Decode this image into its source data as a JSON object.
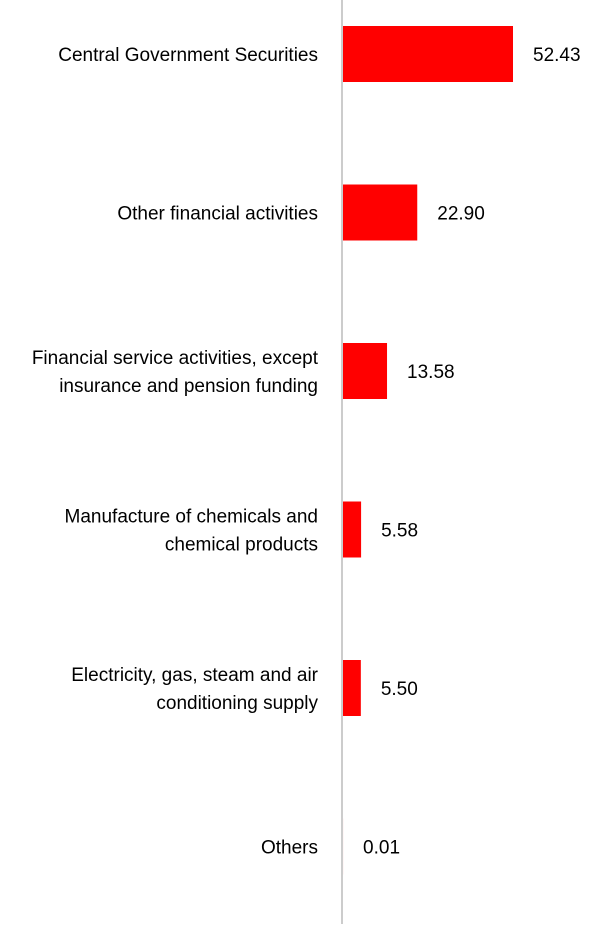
{
  "chart_data": {
    "type": "bar",
    "orientation": "horizontal",
    "categories": [
      [
        "Central Government Securities"
      ],
      [
        "Other financial activities"
      ],
      [
        "Financial service activities, except",
        "insurance and pension funding"
      ],
      [
        "Manufacture of chemicals and",
        "chemical products"
      ],
      [
        "Electricity, gas, steam and air",
        "conditioning supply"
      ],
      [
        "Others"
      ]
    ],
    "values": [
      52.43,
      22.9,
      13.58,
      5.58,
      5.5,
      0.01
    ],
    "value_labels": [
      "52.43",
      "22.90",
      "13.58",
      "5.58",
      "5.50",
      "0.01"
    ],
    "xlim": [
      0,
      60
    ],
    "bar_color": "#ff0000",
    "axis_color": "#cccccc",
    "grid": false,
    "legend": "none"
  }
}
